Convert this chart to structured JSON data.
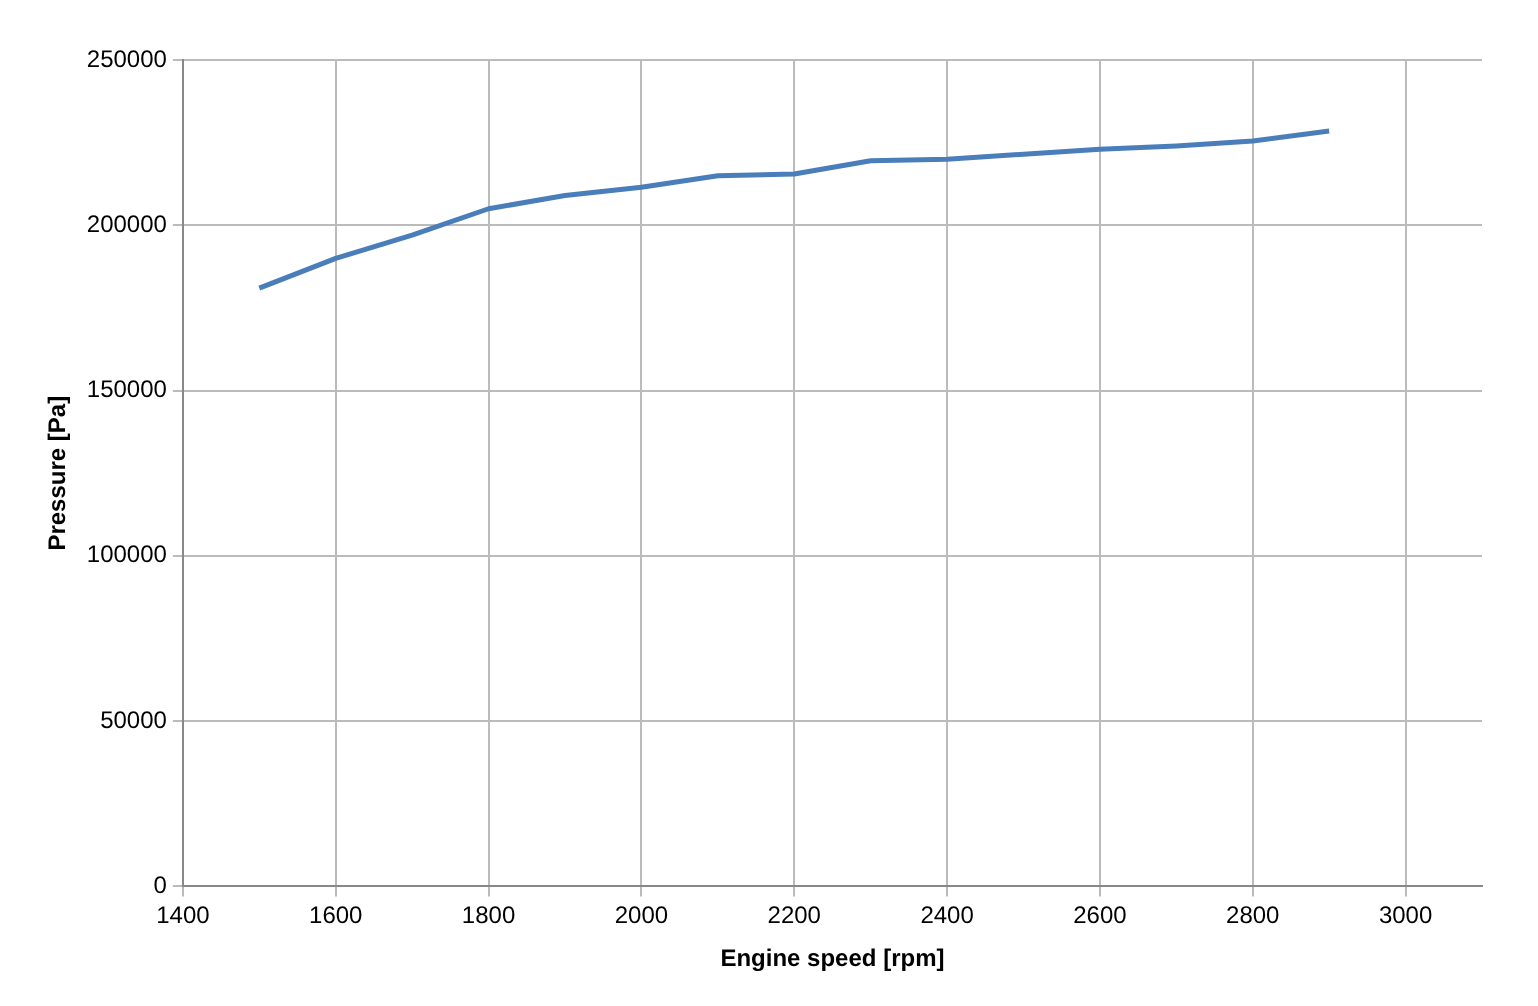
{
  "chart_data": {
    "type": "line",
    "xlabel": "Engine speed [rpm]",
    "ylabel": "Pressure [Pa]",
    "x": [
      1500,
      1600,
      1700,
      1800,
      1900,
      2000,
      2100,
      2200,
      2300,
      2400,
      2500,
      2600,
      2700,
      2800,
      2900
    ],
    "series": [
      {
        "color": "#4a7ebb",
        "values": [
          181000,
          190000,
          197000,
          205000,
          209000,
          211500,
          215000,
          215500,
          219500,
          220000,
          221500,
          223000,
          224000,
          225500,
          228500
        ]
      }
    ],
    "xlim": [
      1400,
      3100
    ],
    "xticks": [
      1400,
      1600,
      1800,
      2000,
      2200,
      2400,
      2600,
      2800,
      3000
    ],
    "ylim": [
      0,
      250000
    ],
    "yticks": [
      0,
      50000,
      100000,
      150000,
      200000,
      250000
    ],
    "grid": true,
    "legend": false,
    "marker": "none",
    "line_style": "solid"
  }
}
